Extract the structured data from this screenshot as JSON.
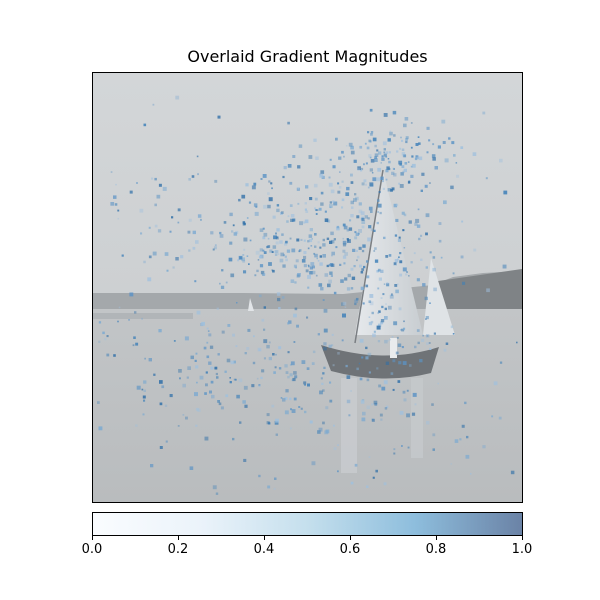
{
  "chart_data": {
    "type": "heatmap",
    "title": "Overlaid Gradient Magnitudes",
    "xlabel": "",
    "ylabel": "",
    "x_ticks_visible": false,
    "y_ticks_visible": false,
    "background_image": "grayscale photo of a sailboat on calm water with a wooded shoreline",
    "overlay_description": "scattered blue speckles concentrated around the sails and upper center",
    "colormap": "Blues",
    "overlay_alpha": 0.5,
    "colorbar": {
      "orientation": "horizontal",
      "location": "bottom",
      "range": [
        0.0,
        1.0
      ],
      "ticks": [
        0.0,
        0.2,
        0.4,
        0.6,
        0.8,
        1.0
      ],
      "tick_labels": [
        "0.0",
        "0.2",
        "0.4",
        "0.6",
        "0.8",
        "1.0"
      ],
      "colors": [
        "#f7fbff",
        "#deebf7",
        "#9ecae1",
        "#4292c6",
        "#08306b"
      ]
    }
  }
}
